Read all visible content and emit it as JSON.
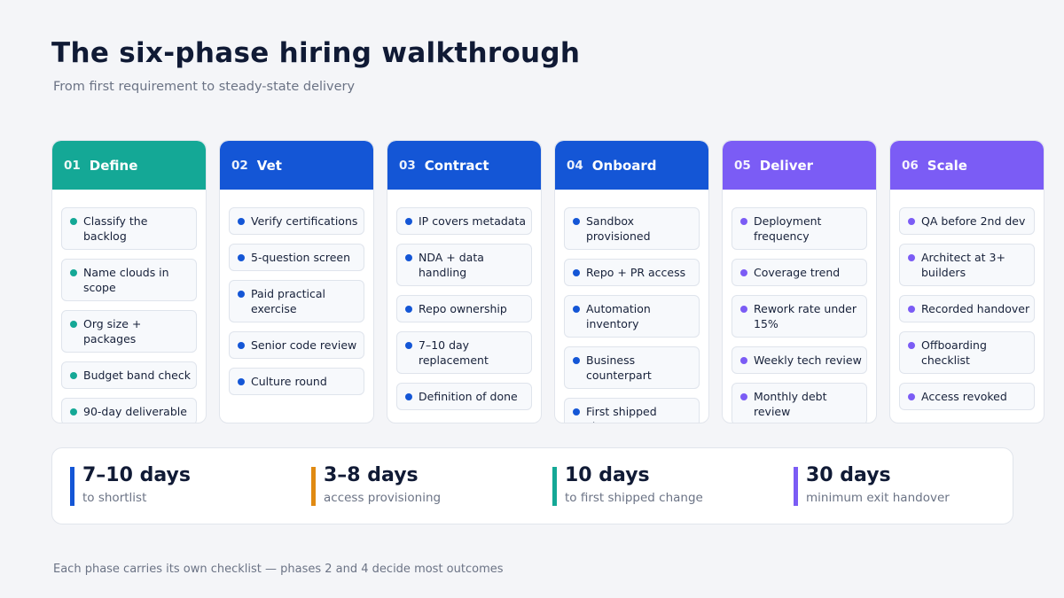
{
  "header": {
    "title": "The six-phase hiring walkthrough",
    "subtitle": "From first requirement to steady-state delivery"
  },
  "phases": [
    {
      "num": "01",
      "name": "Define",
      "color": "#14a896",
      "dot": "#14a896",
      "items": [
        "Classify the backlog",
        "Name clouds in scope",
        "Org size + packages",
        "Budget band check",
        "90-day deliverable"
      ]
    },
    {
      "num": "02",
      "name": "Vet",
      "color": "#1456d6",
      "dot": "#1456d6",
      "items": [
        "Verify certifications",
        "5-question screen",
        "Paid practical exercise",
        "Senior code review",
        "Culture round"
      ]
    },
    {
      "num": "03",
      "name": "Contract",
      "color": "#1456d6",
      "dot": "#1456d6",
      "items": [
        "IP covers metadata",
        "NDA + data handling",
        "Repo ownership",
        "7–10 day replacement",
        "Definition of done"
      ]
    },
    {
      "num": "04",
      "name": "Onboard",
      "color": "#1456d6",
      "dot": "#1456d6",
      "items": [
        "Sandbox provisioned",
        "Repo + PR access",
        "Automation inventory",
        "Business counterpart",
        "First shipped change"
      ]
    },
    {
      "num": "05",
      "name": "Deliver",
      "color": "#7b5cf5",
      "dot": "#7b5cf5",
      "items": [
        "Deployment frequency",
        "Coverage trend",
        "Rework rate under 15%",
        "Weekly tech review",
        "Monthly debt review"
      ]
    },
    {
      "num": "06",
      "name": "Scale",
      "color": "#7b5cf5",
      "dot": "#7b5cf5",
      "items": [
        "QA before 2nd dev",
        "Architect at 3+ builders",
        "Recorded handover",
        "Offboarding checklist",
        "Access revoked"
      ]
    }
  ],
  "stats": [
    {
      "value": "7–10 days",
      "label": "to shortlist",
      "color": "#1456d6"
    },
    {
      "value": "3–8 days",
      "label": "access provisioning",
      "color": "#e08a12"
    },
    {
      "value": "10 days",
      "label": "to first shipped change",
      "color": "#14a896"
    },
    {
      "value": "30 days",
      "label": "minimum exit handover",
      "color": "#7b5cf5"
    }
  ],
  "footer": "Each phase carries its own checklist — phases 2 and 4 decide most outcomes"
}
